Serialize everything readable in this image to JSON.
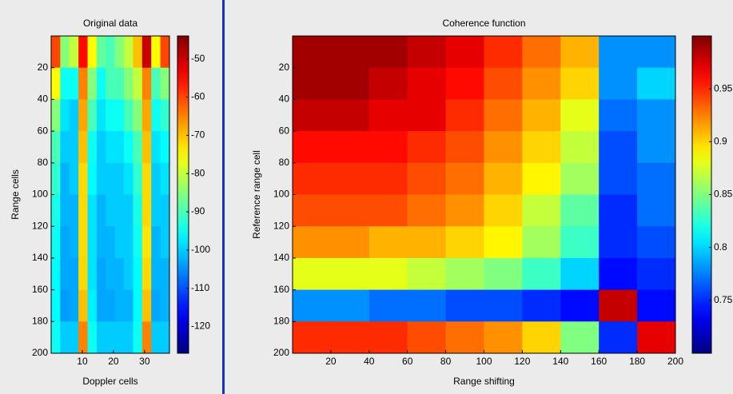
{
  "chart_data": [
    {
      "type": "heatmap",
      "title": "Original data",
      "x_label": "Doppler cells",
      "y_label": "Range cells",
      "xlim": [
        0,
        38
      ],
      "ylim": [
        0,
        200
      ],
      "y_reversed": true,
      "xticks": [
        10,
        20,
        30
      ],
      "yticks": [
        20,
        40,
        60,
        80,
        100,
        120,
        140,
        160,
        180,
        200
      ],
      "colormap": "jet",
      "clim": [
        -127,
        -44
      ],
      "colorbar_ticks": [
        -50,
        -60,
        -70,
        -80,
        -90,
        -100,
        -110,
        -120
      ],
      "matrix": [
        [
          -60,
          -85,
          -80,
          -55,
          -75,
          -88,
          -90,
          -85,
          -80,
          -70,
          -50,
          -75,
          -60
        ],
        [
          -75,
          -95,
          -95,
          -65,
          -85,
          -95,
          -90,
          -90,
          -85,
          -80,
          -65,
          -90,
          -85
        ],
        [
          -85,
          -98,
          -100,
          -68,
          -90,
          -98,
          -95,
          -95,
          -90,
          -85,
          -68,
          -95,
          -92
        ],
        [
          -90,
          -100,
          -100,
          -70,
          -95,
          -100,
          -98,
          -98,
          -95,
          -90,
          -70,
          -98,
          -96
        ],
        [
          -92,
          -102,
          -100,
          -72,
          -96,
          -100,
          -100,
          -100,
          -98,
          -92,
          -72,
          -100,
          -98
        ],
        [
          -94,
          -102,
          -102,
          -72,
          -98,
          -102,
          -100,
          -100,
          -100,
          -94,
          -72,
          -100,
          -100
        ],
        [
          -95,
          -103,
          -102,
          -72,
          -98,
          -102,
          -102,
          -100,
          -100,
          -95,
          -73,
          -102,
          -100
        ],
        [
          -96,
          -103,
          -103,
          -72,
          -98,
          -103,
          -102,
          -102,
          -100,
          -96,
          -72,
          -102,
          -102
        ],
        [
          -96,
          -104,
          -103,
          -70,
          -97,
          -103,
          -103,
          -102,
          -102,
          -96,
          -70,
          -103,
          -102
        ],
        [
          -95,
          -100,
          -100,
          -65,
          -95,
          -100,
          -100,
          -100,
          -100,
          -95,
          -65,
          -100,
          -100
        ]
      ]
    },
    {
      "type": "heatmap",
      "title": "Coherence function",
      "x_label": "Range shifting",
      "y_label": "Reference range cell",
      "xlim": [
        0,
        200
      ],
      "ylim": [
        0,
        200
      ],
      "y_reversed": true,
      "xticks": [
        20,
        40,
        60,
        80,
        100,
        120,
        140,
        160,
        180,
        200
      ],
      "yticks": [
        20,
        40,
        60,
        80,
        100,
        120,
        140,
        160,
        180,
        200
      ],
      "colormap": "jet",
      "clim": [
        0.7,
        1.0
      ],
      "colorbar_ticks": [
        0.95,
        0.9,
        0.85,
        0.8,
        0.75
      ],
      "matrix": [
        [
          0.99,
          0.99,
          0.99,
          0.98,
          0.97,
          0.95,
          0.93,
          0.91,
          0.78,
          0.78
        ],
        [
          0.99,
          0.99,
          0.98,
          0.97,
          0.96,
          0.94,
          0.92,
          0.9,
          0.78,
          0.8
        ],
        [
          0.98,
          0.98,
          0.97,
          0.97,
          0.95,
          0.93,
          0.91,
          0.88,
          0.77,
          0.78
        ],
        [
          0.96,
          0.96,
          0.96,
          0.95,
          0.94,
          0.92,
          0.9,
          0.87,
          0.76,
          0.78
        ],
        [
          0.95,
          0.95,
          0.95,
          0.94,
          0.93,
          0.91,
          0.89,
          0.86,
          0.76,
          0.77
        ],
        [
          0.94,
          0.94,
          0.94,
          0.93,
          0.92,
          0.9,
          0.87,
          0.84,
          0.75,
          0.77
        ],
        [
          0.92,
          0.92,
          0.91,
          0.91,
          0.9,
          0.89,
          0.86,
          0.83,
          0.75,
          0.76
        ],
        [
          0.88,
          0.88,
          0.88,
          0.87,
          0.86,
          0.85,
          0.83,
          0.8,
          0.74,
          0.75
        ],
        [
          0.78,
          0.78,
          0.77,
          0.77,
          0.76,
          0.76,
          0.75,
          0.74,
          0.98,
          0.74
        ],
        [
          0.95,
          0.95,
          0.95,
          0.94,
          0.93,
          0.92,
          0.9,
          0.85,
          0.75,
          0.97
        ]
      ]
    }
  ]
}
